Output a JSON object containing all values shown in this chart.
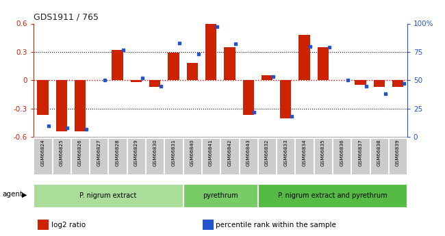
{
  "title": "GDS1911 / 765",
  "samples": [
    "GSM66824",
    "GSM66825",
    "GSM66826",
    "GSM66827",
    "GSM66828",
    "GSM66829",
    "GSM66830",
    "GSM66831",
    "GSM66840",
    "GSM66841",
    "GSM66842",
    "GSM66843",
    "GSM66832",
    "GSM66833",
    "GSM66834",
    "GSM66835",
    "GSM66836",
    "GSM66837",
    "GSM66838",
    "GSM66839"
  ],
  "log2_ratio": [
    -0.37,
    -0.54,
    -0.54,
    0.0,
    0.32,
    -0.02,
    -0.07,
    0.29,
    0.18,
    0.6,
    0.35,
    -0.37,
    0.05,
    -0.4,
    0.48,
    0.35,
    0.0,
    -0.05,
    -0.07,
    -0.07
  ],
  "percentile": [
    10,
    8,
    7,
    50,
    77,
    52,
    45,
    83,
    73,
    97,
    82,
    22,
    53,
    18,
    80,
    79,
    50,
    45,
    38,
    47
  ],
  "groups": [
    {
      "label": "P. nigrum extract",
      "start": 0,
      "end": 8,
      "color": "#aadd99"
    },
    {
      "label": "pyrethrum",
      "start": 8,
      "end": 12,
      "color": "#77cc66"
    },
    {
      "label": "P. nigrum extract and pyrethrum",
      "start": 12,
      "end": 20,
      "color": "#55bb44"
    }
  ],
  "bar_color": "#cc2200",
  "dot_color": "#2255cc",
  "ylim": [
    -0.6,
    0.6
  ],
  "y2lim": [
    0,
    100
  ],
  "yticks": [
    -0.6,
    -0.3,
    0.0,
    0.3,
    0.6
  ],
  "y2ticks": [
    0,
    25,
    50,
    75,
    100
  ],
  "y2ticklabels": [
    "0",
    "25",
    "50",
    "75",
    "100%"
  ],
  "hlines_dotted": [
    -0.3,
    0.3
  ],
  "zero_line_color": "#dd0000",
  "legend_items": [
    {
      "label": "log2 ratio",
      "color": "#cc2200",
      "marker": "s"
    },
    {
      "label": "percentile rank within the sample",
      "color": "#2255cc",
      "marker": "s"
    }
  ],
  "agent_label": "agent"
}
